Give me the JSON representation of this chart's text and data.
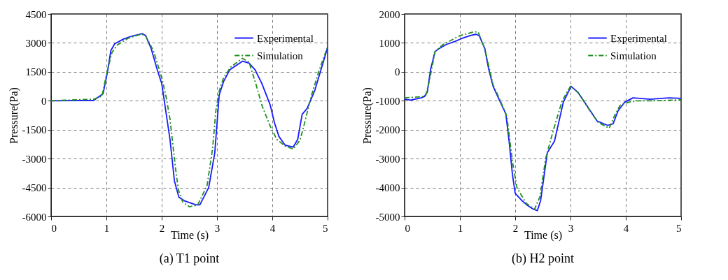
{
  "chart_data": [
    {
      "type": "line",
      "title": "(a) T1 point",
      "xlabel": "Time (s)",
      "ylabel": "Pressure(Pa)",
      "xlim": [
        0,
        5
      ],
      "xticks": [
        0,
        1,
        2,
        3,
        4,
        5
      ],
      "ylim": [
        -6000,
        4500
      ],
      "yticks": [
        -6000,
        -4500,
        -3000,
        -1500,
        0,
        1500,
        3000,
        4500
      ],
      "grid": true,
      "legend": "top right",
      "series": [
        {
          "name": "Experimental",
          "color": "#1a1aff",
          "line_style": "solid",
          "x": [
            0,
            0.77,
            0.94,
            1.02,
            1.08,
            1.15,
            1.31,
            1.46,
            1.65,
            1.71,
            1.81,
            1.92,
            2.0,
            2.08,
            2.15,
            2.23,
            2.31,
            2.42,
            2.62,
            2.69,
            2.85,
            2.96,
            3.04,
            3.12,
            3.23,
            3.46,
            3.58,
            3.69,
            3.81,
            3.96,
            4.04,
            4.12,
            4.23,
            4.38,
            4.46,
            4.54,
            4.63,
            4.77,
            5.0
          ],
          "values": [
            0,
            20,
            360,
            1500,
            2600,
            2950,
            3200,
            3350,
            3480,
            3380,
            2700,
            1600,
            900,
            -650,
            -2000,
            -4150,
            -5000,
            -5200,
            -5400,
            -5400,
            -4500,
            -2700,
            300,
            1000,
            1600,
            2050,
            1950,
            1600,
            900,
            -200,
            -1150,
            -1850,
            -2300,
            -2400,
            -2000,
            -700,
            -400,
            550,
            2750
          ]
        },
        {
          "name": "Simulation",
          "color": "#1f8f1f",
          "line_style": "dashed",
          "x": [
            0,
            0.77,
            0.92,
            1.0,
            1.1,
            1.2,
            1.4,
            1.62,
            1.7,
            1.85,
            2.0,
            2.08,
            2.15,
            2.25,
            2.3,
            2.38,
            2.5,
            2.65,
            2.82,
            2.92,
            2.98,
            3.04,
            3.12,
            3.25,
            3.46,
            3.58,
            3.7,
            3.82,
            3.96,
            4.08,
            4.23,
            4.38,
            4.5,
            4.58,
            4.7,
            4.85,
            5.0
          ],
          "values": [
            0,
            80,
            240,
            1350,
            2500,
            2900,
            3250,
            3450,
            3400,
            2600,
            1200,
            200,
            -950,
            -3500,
            -4600,
            -5250,
            -5500,
            -5400,
            -4400,
            -2500,
            -500,
            500,
            1200,
            1750,
            2200,
            2000,
            900,
            -300,
            -1300,
            -2000,
            -2350,
            -2500,
            -2050,
            -1200,
            200,
            1600,
            2800
          ]
        }
      ]
    },
    {
      "type": "line",
      "title": "(b) H2 point",
      "xlabel": "Time (s)",
      "ylabel": "Pressure(Pa)",
      "xlim": [
        0,
        5
      ],
      "xticks": [
        0,
        1,
        2,
        3,
        4,
        5
      ],
      "ylim": [
        -5000,
        2000
      ],
      "yticks": [
        -5000,
        -4000,
        -3000,
        -2000,
        -1000,
        0,
        1000,
        2000
      ],
      "grid": true,
      "legend": "top right",
      "series": [
        {
          "name": "Experimental",
          "color": "#1a1aff",
          "line_style": "solid",
          "x": [
            0,
            0.11,
            0.3,
            0.36,
            0.41,
            0.47,
            0.55,
            0.62,
            0.76,
            0.91,
            1.03,
            1.18,
            1.29,
            1.35,
            1.45,
            1.52,
            1.6,
            1.72,
            1.83,
            1.89,
            1.95,
            2.0,
            2.12,
            2.21,
            2.33,
            2.4,
            2.46,
            2.58,
            2.71,
            2.87,
            3.01,
            3.13,
            3.29,
            3.48,
            3.67,
            3.77,
            3.86,
            3.98,
            4.13,
            4.44,
            4.78,
            5.0
          ],
          "values": [
            -950,
            -980,
            -900,
            -850,
            -700,
            80,
            700,
            800,
            950,
            1050,
            1150,
            1250,
            1300,
            1250,
            800,
            100,
            -500,
            -1000,
            -1450,
            -2400,
            -3550,
            -4200,
            -4450,
            -4600,
            -4750,
            -4800,
            -4450,
            -2800,
            -2400,
            -1050,
            -500,
            -700,
            -1150,
            -1700,
            -1850,
            -1800,
            -1350,
            -1050,
            -900,
            -950,
            -900,
            -920
          ]
        },
        {
          "name": "Simulation",
          "color": "#1f8f1f",
          "line_style": "dashed",
          "x": [
            0,
            0.3,
            0.38,
            0.45,
            0.55,
            0.7,
            1.0,
            1.25,
            1.33,
            1.45,
            1.6,
            1.72,
            1.85,
            1.95,
            2.03,
            2.2,
            2.35,
            2.45,
            2.55,
            2.7,
            2.85,
            3.0,
            3.15,
            3.3,
            3.5,
            3.7,
            3.8,
            3.9,
            4.05,
            4.2,
            4.5,
            5.0
          ],
          "values": [
            -900,
            -860,
            -830,
            -300,
            700,
            950,
            1250,
            1380,
            1380,
            800,
            -450,
            -950,
            -1550,
            -3100,
            -4000,
            -4550,
            -4750,
            -4300,
            -3000,
            -1950,
            -1000,
            -500,
            -750,
            -1200,
            -1750,
            -1950,
            -1500,
            -1150,
            -1050,
            -1000,
            -1000,
            -970
          ]
        }
      ]
    }
  ]
}
